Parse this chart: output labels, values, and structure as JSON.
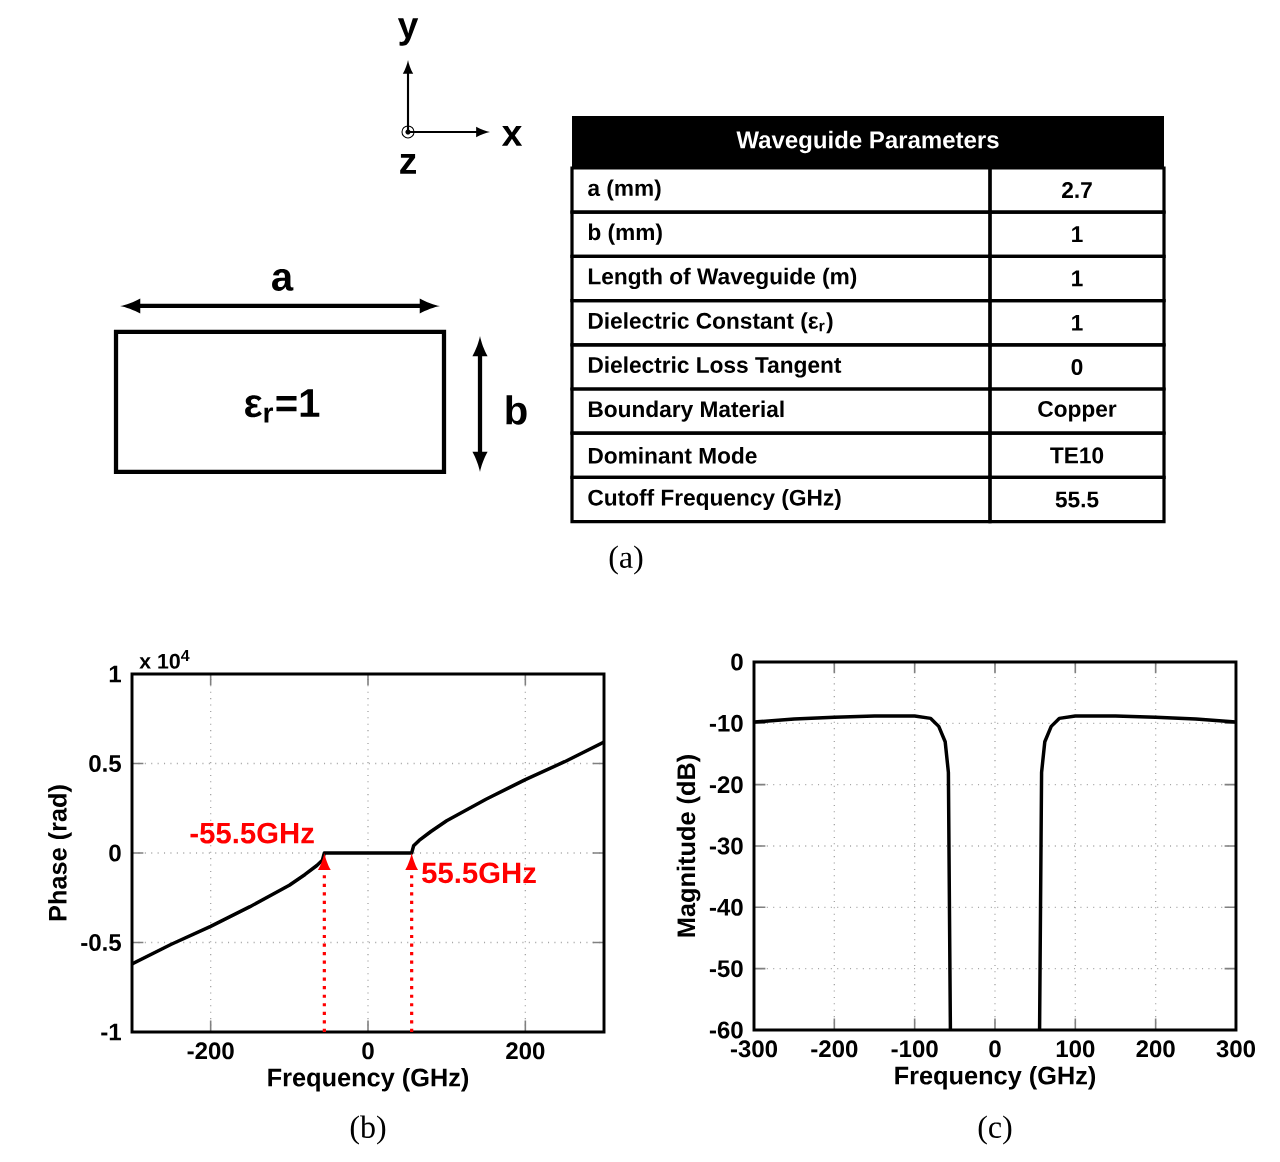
{
  "chart_data": [
    {
      "type": "other",
      "title": "Waveguide Parameters",
      "categories": [
        "a (mm)",
        "b (mm)",
        "Length of Waveguide (m)",
        "Dielectric Constant (ε$_{r}$)",
        "Dielectric Loss Tangent",
        "Boundary Material",
        "Dominant Mode",
        "Cutoff Frequency (GHz)"
      ],
      "value_labels": [
        "2.7",
        "1",
        "1",
        "1",
        "0",
        "Copper",
        "TE10",
        "55.5"
      ],
      "annotations": [
        "(a)",
        "a",
        "b",
        "ε$_{r}$=1",
        "x",
        "y",
        "z"
      ]
    },
    {
      "type": "line",
      "xlabel": "Frequency (GHz)",
      "ylabel": "Phase (rad)",
      "x": [
        -300,
        -250,
        -200,
        -150,
        -100,
        -80,
        -65,
        -58,
        -55.5,
        0,
        55.5,
        58,
        65,
        80,
        100,
        150,
        200,
        250,
        300
      ],
      "series": [
        {
          "color": "#000000",
          "values": [
            -0.62,
            -0.51,
            -0.41,
            -0.3,
            -0.18,
            -0.12,
            -0.07,
            -0.04,
            0,
            0,
            0,
            0.04,
            0.07,
            0.12,
            0.18,
            0.3,
            0.41,
            0.51,
            0.62
          ]
        }
      ],
      "xlim": [
        -300,
        300
      ],
      "ylim": [
        -1,
        1
      ],
      "xticks": [
        -200,
        0,
        200
      ],
      "yticks": [
        -1,
        -0.5,
        0,
        0.5,
        1
      ],
      "grid": true,
      "annotations": [
        "(b)",
        "x 10$^{4}$",
        {
          "text": "-55.5GHz",
          "x": -55.5,
          "y": 0
        },
        {
          "text": "55.5GHz",
          "x": 55.5,
          "y": 0
        }
      ]
    },
    {
      "type": "line",
      "xlabel": "Frequency (GHz)",
      "ylabel": "Magnitude (dB)",
      "x": [
        -300,
        -250,
        -200,
        -150,
        -100,
        -80,
        -70,
        -62,
        -58,
        -55.5,
        0,
        55.5,
        58,
        62,
        70,
        80,
        100,
        150,
        200,
        250,
        300
      ],
      "series": [
        {
          "color": "#000000",
          "values": [
            -9.8,
            -9.3,
            -9.0,
            -8.8,
            -8.8,
            -9.2,
            -10.5,
            -13,
            -18,
            -60,
            null,
            -60,
            -18,
            -13,
            -10.5,
            -9.2,
            -8.8,
            -8.8,
            -9.0,
            -9.3,
            -9.8
          ]
        }
      ],
      "xlim": [
        -300,
        300
      ],
      "ylim": [
        -60,
        0
      ],
      "xticks": [
        -300,
        -200,
        -100,
        0,
        100,
        200,
        300
      ],
      "yticks": [
        -60,
        -50,
        -40,
        -30,
        -20,
        -10,
        0
      ],
      "grid": true,
      "annotations": [
        "(c)"
      ]
    }
  ]
}
